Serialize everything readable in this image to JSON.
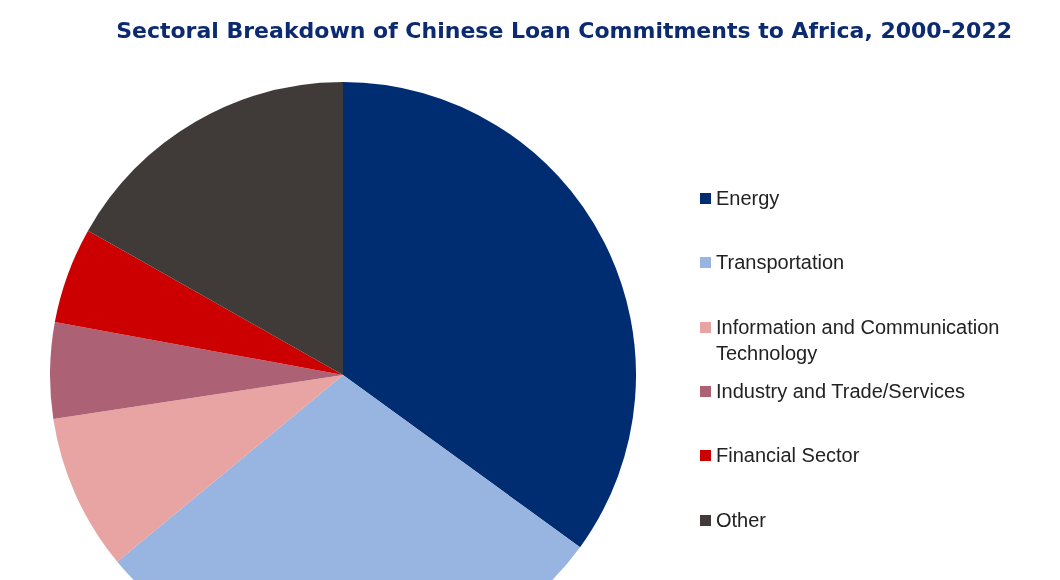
{
  "chart_data": {
    "type": "pie",
    "title": "Sectoral Breakdown of Chinese Loan Commitments to Africa, 2000-2022",
    "categories": [
      "Energy",
      "Transportation",
      "Information and Communication Technology",
      "Industry and Trade/Services",
      "Financial Sector",
      "Other"
    ],
    "values": [
      35,
      29,
      8.6,
      5.3,
      5.3,
      16.8
    ],
    "colors": [
      "#002d72",
      "#98b4e0",
      "#e8a3a3",
      "#ad6174",
      "#cc0000",
      "#403b38"
    ],
    "legend": "right"
  }
}
